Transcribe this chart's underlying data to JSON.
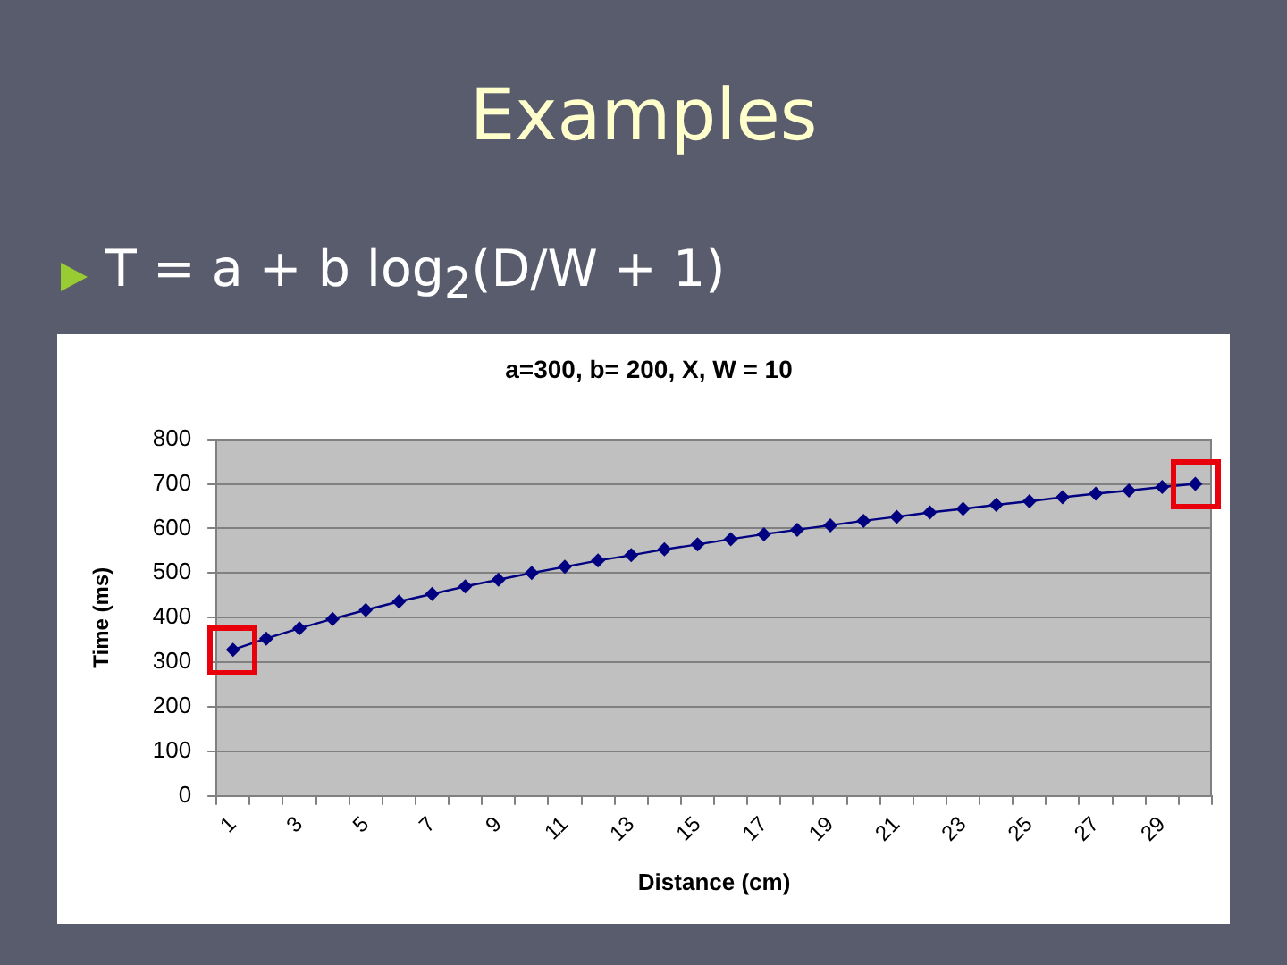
{
  "chart_data": {
    "type": "line",
    "title": "a=300, b= 200, X, W = 10",
    "annotations": [
      "Examples",
      "T = a + b log$_{2}$(D/W + 1)"
    ],
    "xlabel": "Distance (cm)",
    "ylabel": "Time (ms)",
    "categories": [
      "1",
      null,
      "3",
      null,
      "5",
      null,
      "7",
      null,
      "9",
      null,
      "11",
      null,
      "13",
      null,
      "15",
      null,
      "17",
      null,
      "19",
      null,
      "21",
      null,
      "23",
      null,
      "25",
      null,
      "27",
      null,
      "29",
      null
    ],
    "series": [
      {
        "color": "#000080",
        "values": [
          328,
          353,
          376,
          397,
          417,
          436,
          453,
          470,
          485,
          500,
          514,
          528,
          540,
          553,
          564,
          576,
          587,
          597,
          607,
          617,
          626,
          636,
          644,
          653,
          661,
          670,
          678,
          685,
          693,
          700
        ]
      }
    ],
    "ylim": [
      0,
      800
    ],
    "yticks": [
      0,
      100,
      200,
      300,
      400,
      500,
      600,
      700,
      800
    ],
    "grid": "y",
    "marker": "diamond"
  }
}
